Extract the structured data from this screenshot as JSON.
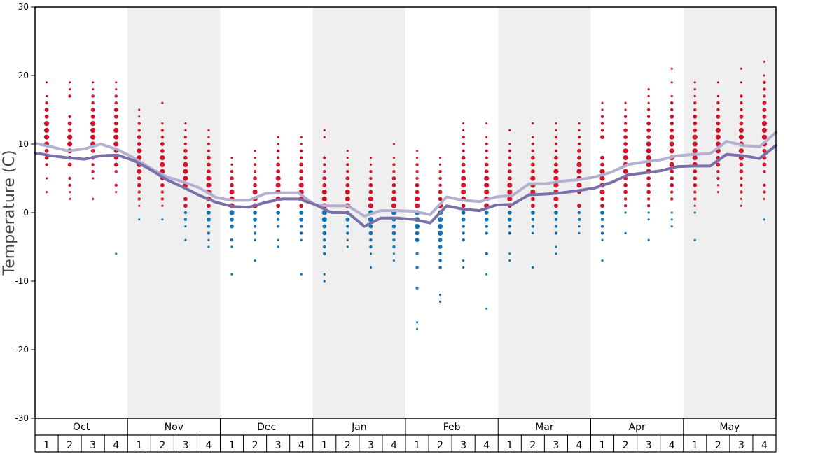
{
  "chart_data": {
    "type": "scatter",
    "title": "",
    "ylabel": "Temperature (C)",
    "xlabel": "",
    "ylim": [
      -30,
      30
    ],
    "yticks": [
      30,
      20,
      10,
      0,
      -10,
      -20,
      -30
    ],
    "grid": false,
    "months": [
      "Oct",
      "Nov",
      "Dec",
      "Jan",
      "Feb",
      "Mar",
      "Apr",
      "May"
    ],
    "weeks_per_month": [
      "1",
      "2",
      "3",
      "4"
    ],
    "shaded_months": [
      "Nov",
      "Jan",
      "Mar",
      "May"
    ],
    "colors": {
      "above_zero": "#d0142c",
      "below_zero": "#1173b4",
      "line_upper": "#b3b0d0",
      "line_lower": "#7b6fa8",
      "shade": "#efefef"
    },
    "lines": [
      {
        "values": [
          10.1,
          9.6,
          9.0,
          9.3,
          10.0,
          9.2,
          8.0,
          6.5,
          5.2,
          4.5,
          3.6,
          2.2,
          1.8,
          1.8,
          2.8,
          2.9,
          2.9,
          1.1,
          1.0,
          1.0,
          -0.5,
          0.3,
          0.3,
          0.2,
          -0.3,
          2.3,
          1.8,
          1.6,
          2.3,
          2.5,
          4.2,
          4.2,
          4.6,
          4.8,
          5.2,
          5.9,
          7.0,
          7.4,
          7.7,
          8.3,
          8.5,
          8.6,
          10.4,
          9.8,
          9.6,
          11.7
        ]
      },
      {
        "values": [
          8.7,
          8.3,
          8.0,
          7.8,
          8.3,
          8.4,
          7.6,
          6.3,
          4.8,
          3.7,
          2.5,
          1.5,
          0.9,
          0.8,
          1.5,
          2.0,
          2.0,
          1.2,
          0.0,
          0.0,
          -2.0,
          -0.8,
          -0.8,
          -1.0,
          -1.5,
          1.0,
          0.5,
          0.3,
          1.1,
          1.2,
          2.6,
          2.7,
          2.9,
          3.2,
          3.6,
          4.4,
          5.5,
          5.8,
          6.1,
          6.7,
          6.8,
          6.8,
          8.5,
          8.3,
          7.9,
          9.8
        ]
      }
    ],
    "points": [
      {
        "week": 1,
        "temps": [
          19,
          17,
          16,
          15,
          14,
          13,
          12,
          11,
          10,
          9,
          8,
          7,
          5,
          3
        ]
      },
      {
        "week": 2,
        "temps": [
          19,
          18,
          17,
          14,
          13,
          12,
          11,
          10,
          9,
          8,
          7,
          5,
          4,
          3,
          2
        ]
      },
      {
        "week": 3,
        "temps": [
          19,
          18,
          17,
          16,
          15,
          14,
          13,
          12,
          11,
          10,
          9,
          8,
          7,
          6,
          5,
          2
        ]
      },
      {
        "week": 4,
        "temps": [
          19,
          18,
          17,
          16,
          15,
          14,
          13,
          12,
          11,
          10,
          9,
          8,
          7,
          6,
          4,
          3,
          -6
        ]
      },
      {
        "week": 5,
        "temps": [
          15,
          14,
          13,
          12,
          11,
          10,
          9,
          8,
          7,
          6,
          5,
          4,
          3,
          2,
          1,
          -1
        ]
      },
      {
        "week": 6,
        "temps": [
          16,
          13,
          12,
          11,
          10,
          9,
          8,
          7,
          6,
          5,
          4,
          3,
          2,
          1,
          -1
        ]
      },
      {
        "week": 7,
        "temps": [
          13,
          12,
          11,
          10,
          9,
          8,
          7,
          6,
          5,
          4,
          2,
          1,
          0,
          -1,
          -2,
          -4
        ]
      },
      {
        "week": 8,
        "temps": [
          12,
          11,
          10,
          9,
          8,
          7,
          6,
          5,
          4,
          3,
          2,
          1,
          0,
          -1,
          -2,
          -3,
          -4,
          -5
        ]
      },
      {
        "week": 9,
        "temps": [
          8,
          7,
          6,
          5,
          4,
          3,
          2,
          1,
          0,
          -1,
          -2,
          -4,
          -5,
          -9
        ]
      },
      {
        "week": 10,
        "temps": [
          9,
          8,
          7,
          6,
          5,
          4,
          3,
          2,
          1,
          0,
          -1,
          -2,
          -3,
          -4,
          -7
        ]
      },
      {
        "week": 11,
        "temps": [
          11,
          10,
          9,
          8,
          7,
          6,
          5,
          4,
          3,
          2,
          1,
          0,
          -1,
          -2,
          -4,
          -5
        ]
      },
      {
        "week": 12,
        "temps": [
          11,
          10,
          9,
          8,
          7,
          6,
          5,
          4,
          3,
          2,
          1,
          0,
          -1,
          -2,
          -3,
          -4,
          -9
        ]
      },
      {
        "week": 13,
        "temps": [
          12,
          11,
          8,
          7,
          6,
          5,
          4,
          3,
          2,
          1,
          0,
          -1,
          -2,
          -3,
          -4,
          -5,
          -6,
          -9,
          -10
        ]
      },
      {
        "week": 14,
        "temps": [
          9,
          8,
          7,
          6,
          5,
          4,
          3,
          2,
          1,
          0,
          -1,
          -2,
          -3,
          -4,
          -5
        ]
      },
      {
        "week": 15,
        "temps": [
          8,
          7,
          6,
          5,
          4,
          3,
          2,
          1,
          0,
          -1,
          -2,
          -3,
          -4,
          -5,
          -6,
          -8
        ]
      },
      {
        "week": 16,
        "temps": [
          10,
          8,
          7,
          6,
          5,
          4,
          3,
          2,
          1,
          0,
          -1,
          -2,
          -3,
          -4,
          -5,
          -6,
          -7
        ]
      },
      {
        "week": 17,
        "temps": [
          9,
          8,
          7,
          6,
          5,
          4,
          3,
          2,
          1,
          0,
          -1,
          -2,
          -3,
          -4,
          -6,
          -8,
          -11,
          -16,
          -17
        ]
      },
      {
        "week": 18,
        "temps": [
          8,
          7,
          6,
          5,
          4,
          3,
          2,
          1,
          0,
          -1,
          -2,
          -3,
          -4,
          -5,
          -6,
          -7,
          -8,
          -12,
          -13
        ]
      },
      {
        "week": 19,
        "temps": [
          13,
          12,
          11,
          10,
          9,
          8,
          7,
          6,
          5,
          4,
          3,
          2,
          1,
          0,
          -1,
          -2,
          -3,
          -4,
          -7,
          -8
        ]
      },
      {
        "week": 20,
        "temps": [
          13,
          11,
          10,
          9,
          8,
          7,
          6,
          5,
          4,
          3,
          2,
          1,
          0,
          -1,
          -2,
          -3,
          -6,
          -9,
          -14
        ]
      },
      {
        "week": 21,
        "temps": [
          12,
          10,
          9,
          8,
          7,
          6,
          5,
          4,
          3,
          2,
          1,
          0,
          -1,
          -2,
          -3,
          -6,
          -7
        ]
      },
      {
        "week": 22,
        "temps": [
          13,
          11,
          10,
          9,
          8,
          7,
          6,
          5,
          4,
          3,
          2,
          1,
          0,
          -1,
          -2,
          -3,
          -8
        ]
      },
      {
        "week": 23,
        "temps": [
          13,
          12,
          11,
          10,
          9,
          8,
          7,
          6,
          5,
          4,
          3,
          2,
          1,
          0,
          -1,
          -2,
          -3,
          -5,
          -6
        ]
      },
      {
        "week": 24,
        "temps": [
          13,
          12,
          11,
          10,
          9,
          8,
          7,
          6,
          5,
          4,
          3,
          1,
          0,
          -1,
          -2,
          -3
        ]
      },
      {
        "week": 25,
        "temps": [
          16,
          15,
          14,
          13,
          12,
          11,
          8,
          7,
          6,
          5,
          4,
          3,
          2,
          1,
          0,
          -1,
          -2,
          -3,
          -4,
          -7
        ]
      },
      {
        "week": 26,
        "temps": [
          16,
          15,
          14,
          13,
          12,
          11,
          10,
          9,
          8,
          7,
          6,
          5,
          4,
          3,
          2,
          1,
          0,
          -3
        ]
      },
      {
        "week": 27,
        "temps": [
          18,
          17,
          16,
          15,
          14,
          13,
          12,
          11,
          10,
          9,
          8,
          7,
          6,
          5,
          4,
          3,
          2,
          1,
          0,
          -1,
          -4
        ]
      },
      {
        "week": 28,
        "temps": [
          21,
          19,
          17,
          16,
          15,
          14,
          13,
          12,
          11,
          10,
          9,
          8,
          7,
          6,
          5,
          4,
          3,
          2,
          0,
          -1,
          -2
        ]
      },
      {
        "week": 29,
        "temps": [
          19,
          18,
          17,
          16,
          15,
          14,
          13,
          12,
          11,
          10,
          9,
          8,
          7,
          6,
          5,
          4,
          3,
          2,
          1,
          0,
          -4
        ]
      },
      {
        "week": 30,
        "temps": [
          19,
          17,
          16,
          15,
          14,
          13,
          12,
          11,
          10,
          9,
          8,
          7,
          6,
          5,
          4,
          3
        ]
      },
      {
        "week": 31,
        "temps": [
          21,
          19,
          17,
          16,
          15,
          14,
          13,
          12,
          11,
          10,
          9,
          8,
          7,
          6,
          5,
          4,
          3,
          2,
          1
        ]
      },
      {
        "week": 32,
        "temps": [
          22,
          20,
          19,
          18,
          17,
          16,
          15,
          14,
          13,
          12,
          11,
          10,
          9,
          8,
          7,
          6,
          4,
          3,
          2,
          -1
        ]
      }
    ]
  }
}
